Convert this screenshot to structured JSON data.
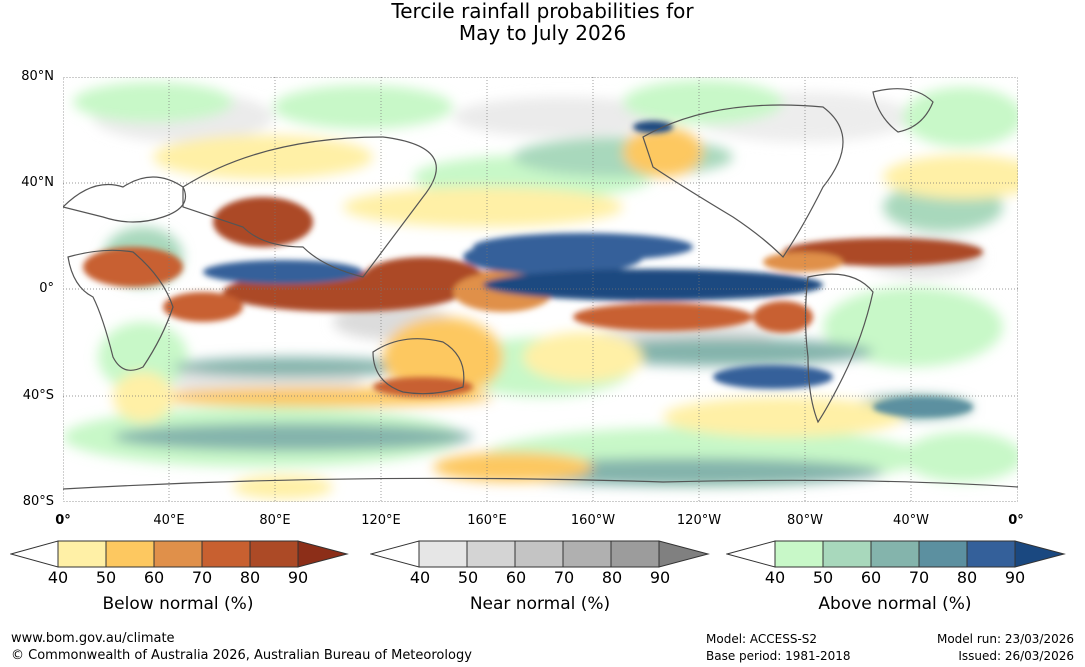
{
  "title": {
    "line1": "Tercile rainfall probabilities for",
    "line2": "May to July 2026"
  },
  "axes": {
    "lat_labels": [
      "80°N",
      "40°N",
      "0°",
      "40°S",
      "80°S"
    ],
    "lon_labels": [
      "0°",
      "40°E",
      "80°E",
      "120°E",
      "160°E",
      "160°W",
      "120°W",
      "80°W",
      "40°W",
      "0°"
    ]
  },
  "colorbars": [
    {
      "title": "Below normal (%)",
      "ticks": [
        "40",
        "50",
        "60",
        "70",
        "80",
        "90"
      ],
      "colors": [
        "#ffffff",
        "#fff0a6",
        "#fdc860",
        "#e0904a",
        "#c86030",
        "#ac4a26",
        "#8c2e18"
      ]
    },
    {
      "title": "Near normal (%)",
      "ticks": [
        "40",
        "50",
        "60",
        "70",
        "80",
        "90"
      ],
      "colors": [
        "#ffffff",
        "#e6e6e6",
        "#d4d4d4",
        "#c4c4c4",
        "#b0b0b0",
        "#9c9c9c",
        "#808080"
      ]
    },
    {
      "title": "Above normal (%)",
      "ticks": [
        "40",
        "50",
        "60",
        "70",
        "80",
        "90"
      ],
      "colors": [
        "#ffffff",
        "#c8f8c8",
        "#a8d8bc",
        "#84b4ac",
        "#5c90a0",
        "#34609a",
        "#1a4880"
      ]
    }
  ],
  "footer": {
    "website": "www.bom.gov.au/climate",
    "copyright": "© Commonwealth of Australia 2026, Australian Bureau of Meteorology",
    "model": "Model: ACCESS-S2",
    "base_period": "Base period: 1981-2018",
    "model_run": "Model run: 23/03/2026",
    "issued": "Issued: 26/03/2026"
  }
}
